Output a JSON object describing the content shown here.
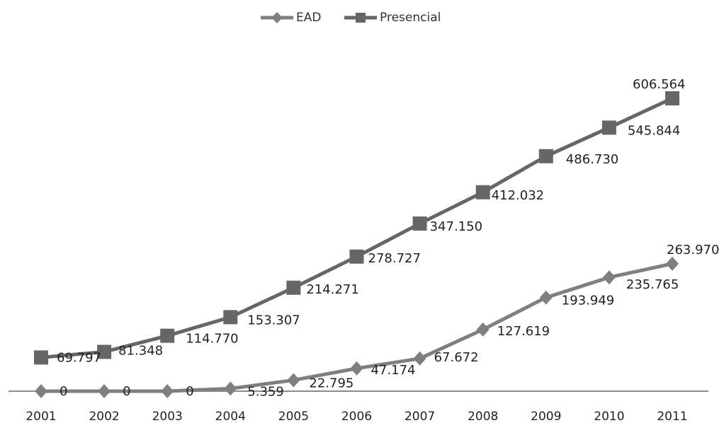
{
  "chart_data": {
    "type": "line",
    "title": "",
    "xlabel": "",
    "ylabel": "",
    "categories": [
      "2001",
      "2002",
      "2003",
      "2004",
      "2005",
      "2006",
      "2007",
      "2008",
      "2009",
      "2010",
      "2011"
    ],
    "ylim": [
      0,
      650000
    ],
    "grid": false,
    "legend_position": "top",
    "series": [
      {
        "name": "EAD",
        "marker": "diamond",
        "color": "#7f7f7f",
        "values": [
          0,
          0,
          0,
          5359,
          22795,
          47174,
          67672,
          127619,
          193949,
          235765,
          263970
        ],
        "labels": [
          "0",
          "0",
          "0",
          "5.359",
          "22.795",
          "47.174",
          "67.672",
          "127.619",
          "193.949",
          "235.765",
          "263.970"
        ]
      },
      {
        "name": "Presencial",
        "marker": "square",
        "color": "#666666",
        "values": [
          69797,
          81348,
          114770,
          153307,
          214271,
          278727,
          347150,
          412032,
          486730,
          545844,
          606564
        ],
        "labels": [
          "69.797",
          "81.348",
          "114.770",
          "153.307",
          "214.271",
          "278.727",
          "347.150",
          "412.032",
          "486.730",
          "545.844",
          "606.564"
        ]
      }
    ]
  }
}
